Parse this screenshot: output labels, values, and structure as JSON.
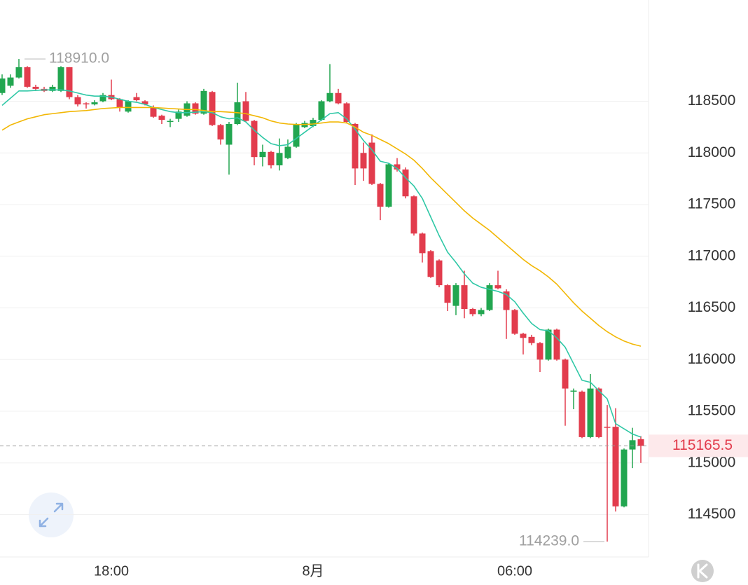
{
  "chart_data": {
    "type": "candlestick",
    "categories": [
      null,
      null,
      null,
      null,
      null,
      null,
      null,
      null,
      null,
      null,
      null,
      null,
      null,
      "18:00",
      null,
      null,
      null,
      null,
      null,
      null,
      null,
      null,
      null,
      null,
      null,
      null,
      null,
      null,
      null,
      null,
      null,
      null,
      null,
      null,
      null,
      null,
      null,
      "8月",
      null,
      null,
      null,
      null,
      null,
      null,
      null,
      null,
      null,
      null,
      null,
      null,
      null,
      null,
      null,
      null,
      null,
      null,
      null,
      null,
      null,
      null,
      null,
      "06:00",
      null,
      null,
      null,
      null,
      null,
      null,
      null,
      null,
      null,
      null,
      null,
      null,
      null,
      null,
      null
    ],
    "candles": {
      "open": [
        118580,
        118650,
        118730,
        118830,
        118640,
        118620,
        118600,
        118600,
        118830,
        118540,
        118480,
        118470,
        118500,
        118560,
        118520,
        118400,
        118540,
        118500,
        118440,
        118360,
        118300,
        118330,
        118360,
        118480,
        118380,
        118590,
        118270,
        118080,
        118280,
        118500,
        118310,
        117960,
        118010,
        117880,
        117950,
        118060,
        118250,
        118260,
        118320,
        118500,
        118580,
        118480,
        118280,
        118000,
        118100,
        117700,
        117480,
        117890,
        117840,
        117580,
        117220,
        117050,
        116960,
        116720,
        116520,
        116720,
        116490,
        116440,
        116480,
        116720,
        116660,
        116480,
        116250,
        116220,
        116160,
        116000,
        116290,
        116000,
        115690,
        115690,
        115250,
        115720,
        115350,
        115350,
        114580,
        115130,
        115230
      ],
      "high": [
        118760,
        118760,
        118910,
        118840,
        118660,
        118640,
        118660,
        118840,
        118830,
        118560,
        118490,
        118510,
        118580,
        118710,
        118530,
        118510,
        118580,
        118510,
        118460,
        118370,
        118330,
        118420,
        118500,
        118490,
        118620,
        118600,
        118280,
        118300,
        118680,
        118590,
        118320,
        118080,
        118020,
        118140,
        118130,
        118290,
        118310,
        118340,
        118510,
        118860,
        118620,
        118490,
        118290,
        118100,
        118180,
        117710,
        117900,
        117950,
        117860,
        117590,
        117230,
        117060,
        116970,
        116730,
        116740,
        116860,
        116500,
        116500,
        116740,
        116860,
        116680,
        116490,
        116260,
        116240,
        116170,
        116300,
        116300,
        116010,
        115720,
        115700,
        115860,
        115730,
        115560,
        115530,
        115140,
        115340,
        115260
      ],
      "low": [
        118560,
        118630,
        118720,
        118630,
        118600,
        118590,
        118590,
        118590,
        118520,
        118450,
        118430,
        118460,
        118490,
        118510,
        118400,
        118390,
        118500,
        118460,
        118340,
        118280,
        118250,
        118300,
        118350,
        118370,
        118370,
        118260,
        118080,
        117790,
        118270,
        118300,
        117880,
        117870,
        117850,
        117830,
        117940,
        118050,
        118240,
        118250,
        118310,
        118490,
        118470,
        118290,
        117690,
        117730,
        117690,
        117350,
        117470,
        117820,
        117560,
        117200,
        116940,
        116790,
        116700,
        116470,
        116430,
        116400,
        116420,
        116420,
        116470,
        116680,
        116200,
        116240,
        116050,
        116140,
        115880,
        115990,
        115990,
        115360,
        115520,
        115240,
        115240,
        115240,
        114239,
        114530,
        114570,
        114950,
        115000
      ],
      "close": [
        118720,
        118730,
        118830,
        118640,
        118620,
        118600,
        118640,
        118830,
        118540,
        118470,
        118470,
        118490,
        118560,
        118520,
        118440,
        118500,
        118510,
        118470,
        118350,
        118320,
        118310,
        118400,
        118480,
        118380,
        118600,
        118270,
        118130,
        118280,
        118490,
        118310,
        117960,
        118010,
        117880,
        118000,
        118060,
        118280,
        118290,
        118320,
        118500,
        118580,
        118480,
        118300,
        117850,
        117850,
        117700,
        117480,
        117890,
        117840,
        117580,
        117220,
        117030,
        116800,
        116720,
        116550,
        116720,
        116490,
        116440,
        116480,
        116720,
        116690,
        116480,
        116250,
        116210,
        116160,
        116000,
        116290,
        116000,
        115720,
        115700,
        115250,
        115720,
        115250,
        115340,
        114580,
        115130,
        115220,
        115165.5
      ]
    },
    "up_color": "#22a650",
    "down_color": "#e23c4d",
    "series": [
      {
        "color": "#2fc8a6",
        "values": [
          118460,
          118530,
          118600,
          118600,
          118605,
          118610,
          118610,
          118610,
          118600,
          118580,
          118560,
          118550,
          118550,
          118540,
          118520,
          118500,
          118490,
          118470,
          118440,
          118420,
          118400,
          118390,
          118390,
          118395,
          118400,
          118390,
          118350,
          118330,
          118340,
          118300,
          118220,
          118150,
          118090,
          118070,
          118080,
          118140,
          118200,
          118260,
          118320,
          118380,
          118390,
          118330,
          118230,
          118120,
          118030,
          117920,
          117900,
          117850,
          117760,
          117680,
          117560,
          117380,
          117200,
          117040,
          116940,
          116830,
          116740,
          116700,
          116680,
          116660,
          116630,
          116560,
          116450,
          116350,
          116290,
          116280,
          116210,
          116120,
          115960,
          115800,
          115780,
          115700,
          115620,
          115380,
          115330,
          115280,
          115250
        ]
      },
      {
        "color": "#f2b705",
        "values": [
          118220,
          118270,
          118300,
          118330,
          118350,
          118370,
          118380,
          118390,
          118400,
          118405,
          118410,
          118420,
          118430,
          118435,
          118440,
          118440,
          118440,
          118440,
          118440,
          118435,
          118430,
          118425,
          118420,
          118420,
          118410,
          118400,
          118400,
          118395,
          118390,
          118380,
          118360,
          118340,
          118310,
          118290,
          118280,
          118275,
          118275,
          118280,
          118290,
          118300,
          118300,
          118290,
          118250,
          118200,
          118170,
          118130,
          118090,
          118040,
          117990,
          117930,
          117850,
          117760,
          117680,
          117600,
          117520,
          117440,
          117370,
          117310,
          117250,
          117180,
          117110,
          117040,
          116970,
          116910,
          116860,
          116800,
          116730,
          116640,
          116550,
          116470,
          116400,
          116330,
          116270,
          116220,
          116180,
          116150,
          116130
        ]
      }
    ],
    "ylim": [
      114090,
      119480
    ],
    "yticks": [
      114500,
      115000,
      115500,
      116000,
      116500,
      117000,
      117500,
      118000,
      118500
    ],
    "grid": true,
    "max_marker": {
      "value": 118910,
      "label": "118910.0"
    },
    "min_marker": {
      "value": 114239,
      "label": "114239.0"
    },
    "last_price": 115165.5
  }
}
